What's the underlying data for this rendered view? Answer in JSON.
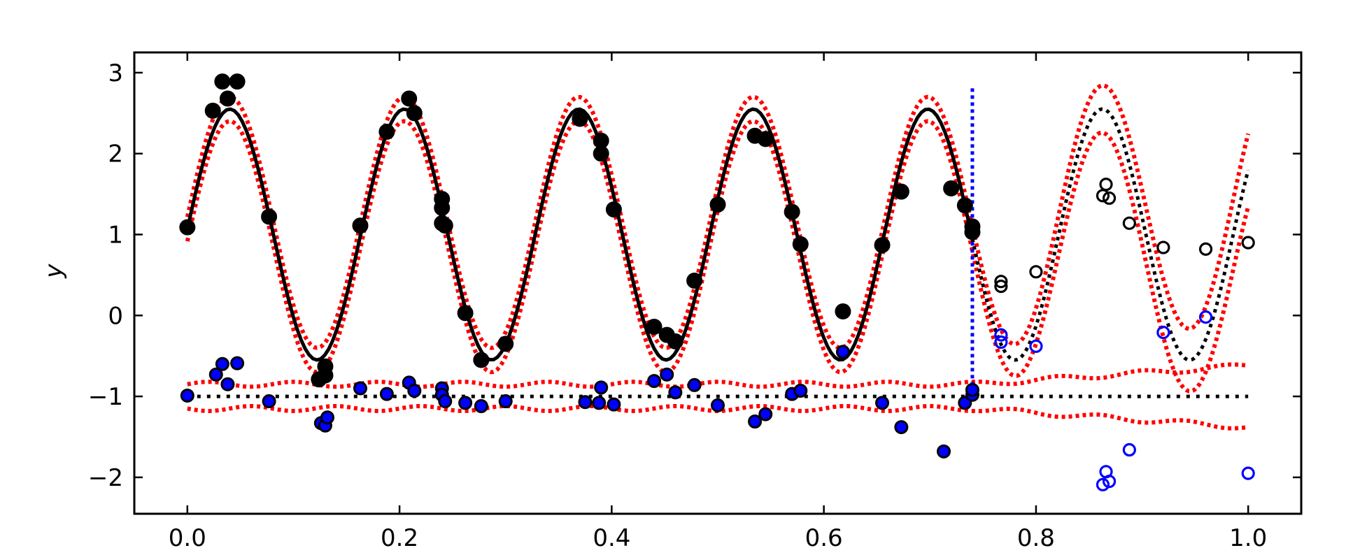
{
  "chart_data": {
    "type": "scatter",
    "title": "",
    "xlabel": "",
    "ylabel": "y",
    "xlim": [
      -0.05,
      1.05
    ],
    "ylim": [
      -2.45,
      3.25
    ],
    "xticks": [
      0.0,
      0.2,
      0.4,
      0.6,
      0.8,
      1.0
    ],
    "xtick_labels": [
      "0.0",
      "0.2",
      "0.4",
      "0.6",
      "0.8",
      "1.0"
    ],
    "yticks": [
      -2,
      -1,
      0,
      1,
      2,
      3
    ],
    "ytick_labels": [
      "−2",
      "−1",
      "0",
      "1",
      "2",
      "3"
    ],
    "grid": false,
    "legend": "none",
    "split_x": 0.74,
    "split_line": {
      "x": 0.74,
      "y_range": [
        -0.95,
        2.85
      ],
      "color": "#0000ff",
      "style": "dotted"
    },
    "model": {
      "offset": 1.0,
      "amplitude": 1.55,
      "period": 0.1645,
      "phase_x": 0.0,
      "phase_shift": 0.0,
      "band_half_width_train": 0.15,
      "band_half_width_test": 0.45,
      "fit_color": "#000000",
      "band_color": "#ff0000"
    },
    "residual_band": {
      "center": -1.0,
      "half_width_train": 0.15,
      "half_width_test": 0.38
    },
    "series": [
      {
        "role": "train-observations",
        "color": "#000000",
        "marker": "filled",
        "points": [
          [
            0.0,
            1.09
          ],
          [
            0.024,
            2.53
          ],
          [
            0.033,
            2.89
          ],
          [
            0.038,
            2.68
          ],
          [
            0.047,
            2.89
          ],
          [
            0.077,
            1.22
          ],
          [
            0.124,
            -0.79
          ],
          [
            0.13,
            -0.63
          ],
          [
            0.13,
            -0.74
          ],
          [
            0.163,
            1.11
          ],
          [
            0.188,
            2.27
          ],
          [
            0.209,
            2.68
          ],
          [
            0.214,
            2.5
          ],
          [
            0.24,
            1.44
          ],
          [
            0.24,
            1.33
          ],
          [
            0.24,
            1.14
          ],
          [
            0.243,
            1.11
          ],
          [
            0.262,
            0.03
          ],
          [
            0.277,
            -0.55
          ],
          [
            0.3,
            -0.35
          ],
          [
            0.37,
            2.43
          ],
          [
            0.39,
            2.16
          ],
          [
            0.39,
            2.0
          ],
          [
            0.402,
            1.31
          ],
          [
            0.44,
            -0.14
          ],
          [
            0.452,
            -0.24
          ],
          [
            0.46,
            -0.32
          ],
          [
            0.478,
            0.43
          ],
          [
            0.5,
            1.37
          ],
          [
            0.535,
            2.22
          ],
          [
            0.545,
            2.18
          ],
          [
            0.57,
            1.28
          ],
          [
            0.578,
            0.88
          ],
          [
            0.618,
            0.05
          ],
          [
            0.655,
            0.87
          ],
          [
            0.673,
            1.53
          ],
          [
            0.72,
            1.57
          ],
          [
            0.733,
            1.36
          ],
          [
            0.74,
            1.1
          ],
          [
            0.74,
            1.03
          ]
        ]
      },
      {
        "role": "train-residuals",
        "color": "#0000ff",
        "marker": "filled-outlined",
        "points": [
          [
            0.0,
            -0.99
          ],
          [
            0.027,
            -0.73
          ],
          [
            0.033,
            -0.6
          ],
          [
            0.038,
            -0.85
          ],
          [
            0.047,
            -0.59
          ],
          [
            0.077,
            -1.06
          ],
          [
            0.126,
            -1.33
          ],
          [
            0.13,
            -1.36
          ],
          [
            0.132,
            -1.26
          ],
          [
            0.163,
            -0.9
          ],
          [
            0.188,
            -0.97
          ],
          [
            0.209,
            -0.83
          ],
          [
            0.214,
            -0.93
          ],
          [
            0.24,
            -0.9
          ],
          [
            0.24,
            -0.98
          ],
          [
            0.243,
            -1.06
          ],
          [
            0.262,
            -1.08
          ],
          [
            0.277,
            -1.12
          ],
          [
            0.3,
            -1.06
          ],
          [
            0.375,
            -1.07
          ],
          [
            0.388,
            -1.08
          ],
          [
            0.39,
            -0.89
          ],
          [
            0.402,
            -1.1
          ],
          [
            0.44,
            -0.81
          ],
          [
            0.452,
            -0.73
          ],
          [
            0.46,
            -0.95
          ],
          [
            0.478,
            -0.86
          ],
          [
            0.5,
            -1.11
          ],
          [
            0.535,
            -1.31
          ],
          [
            0.545,
            -1.22
          ],
          [
            0.57,
            -0.97
          ],
          [
            0.578,
            -0.93
          ],
          [
            0.618,
            -0.45
          ],
          [
            0.655,
            -1.08
          ],
          [
            0.673,
            -1.38
          ],
          [
            0.713,
            -1.68
          ],
          [
            0.733,
            -1.08
          ],
          [
            0.74,
            -0.98
          ],
          [
            0.74,
            -0.92
          ]
        ]
      },
      {
        "role": "test-observations",
        "color": "#000000",
        "marker": "open",
        "points": [
          [
            0.767,
            0.42
          ],
          [
            0.767,
            0.36
          ],
          [
            0.8,
            0.54
          ],
          [
            0.863,
            1.48
          ],
          [
            0.866,
            1.62
          ],
          [
            0.869,
            1.45
          ],
          [
            0.888,
            1.14
          ],
          [
            0.92,
            0.84
          ],
          [
            0.96,
            0.82
          ],
          [
            1.0,
            0.9
          ]
        ]
      },
      {
        "role": "test-residuals",
        "color": "#0000ff",
        "marker": "open",
        "points": [
          [
            0.767,
            -0.24
          ],
          [
            0.767,
            -0.33
          ],
          [
            0.8,
            -0.38
          ],
          [
            0.863,
            -2.09
          ],
          [
            0.866,
            -1.93
          ],
          [
            0.869,
            -2.05
          ],
          [
            0.888,
            -1.66
          ],
          [
            0.92,
            -0.21
          ],
          [
            0.96,
            -0.02
          ],
          [
            1.0,
            -1.95
          ]
        ]
      }
    ]
  }
}
